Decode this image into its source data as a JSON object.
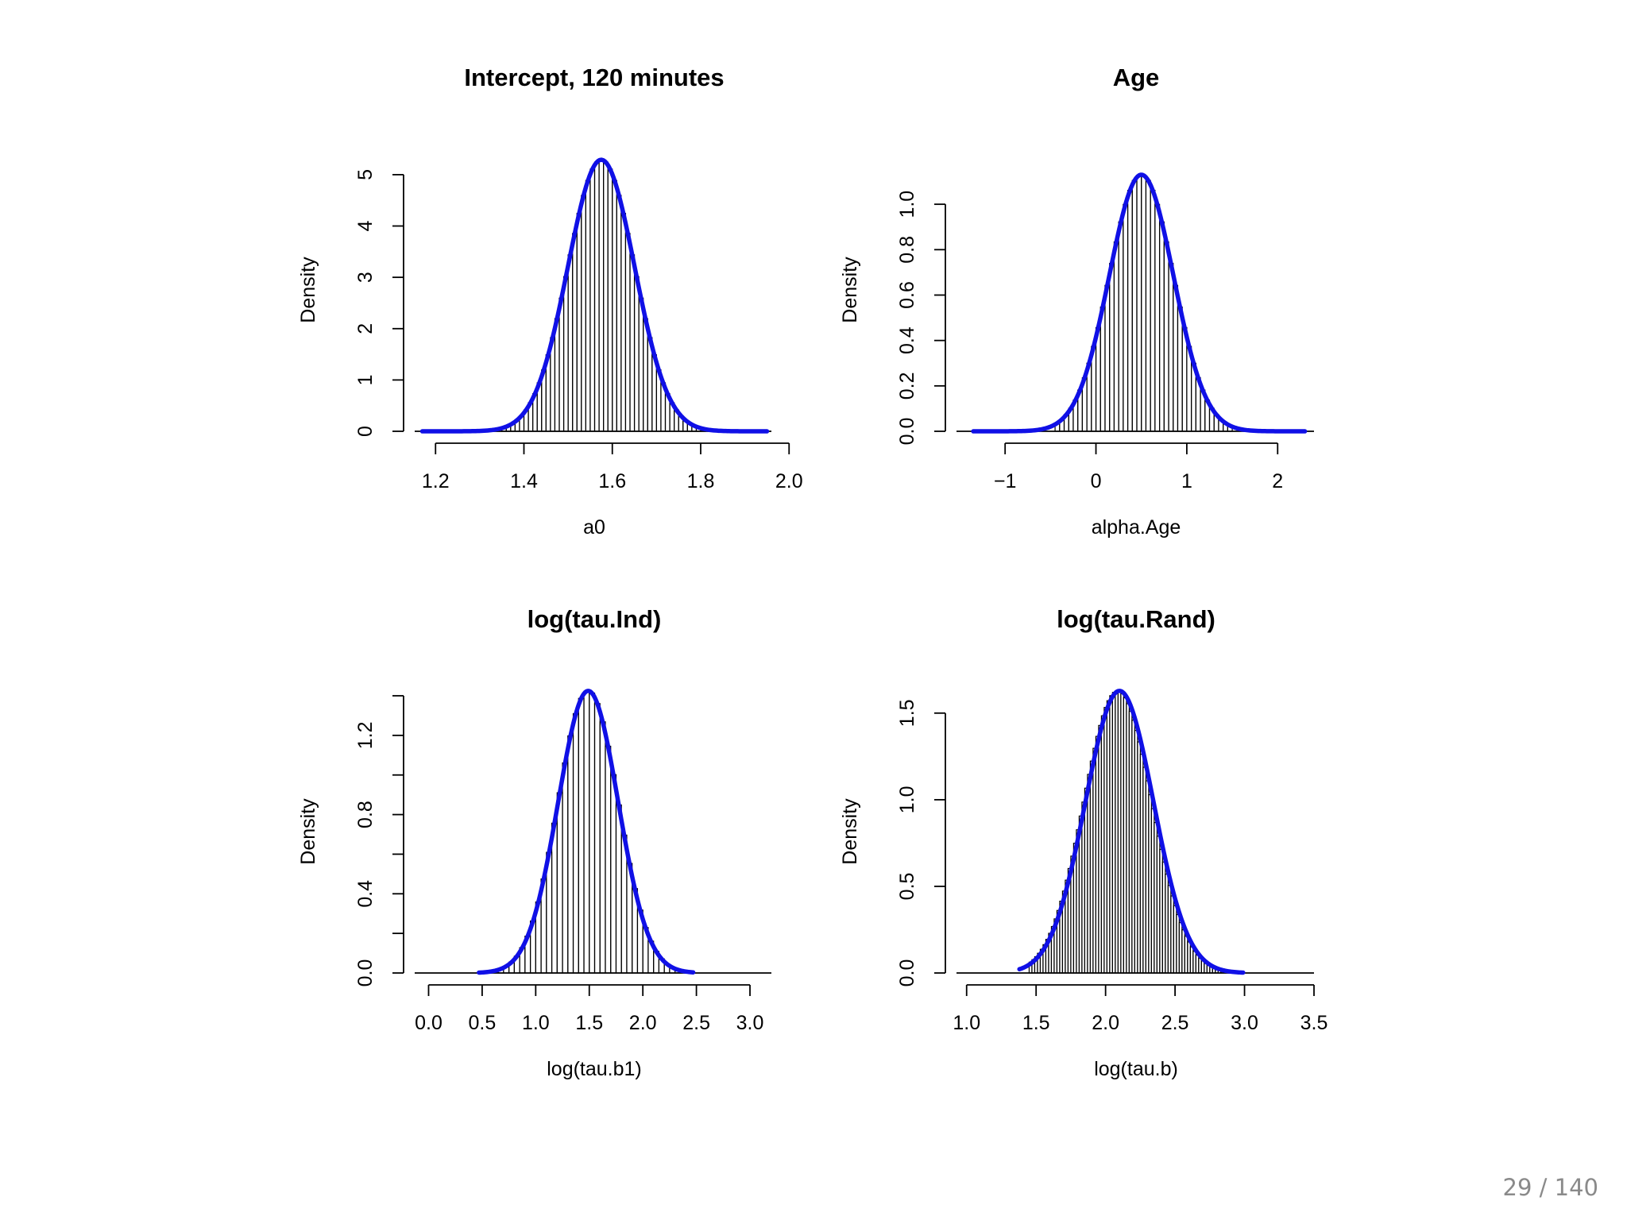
{
  "page": {
    "number_label": "29 / 140"
  },
  "style": {
    "curve_color": "#1010e6",
    "bar_color": "#000000"
  },
  "chart_data": [
    {
      "type": "bar",
      "title": "Intercept, 120 minutes",
      "xlabel": "a0",
      "ylabel": "Density",
      "xlim": [
        1.16,
        1.96
      ],
      "ylim": [
        0,
        5.2
      ],
      "xticks": [
        1.2,
        1.4,
        1.6,
        1.8,
        2.0
      ],
      "xtick_labels": [
        "1.2",
        "1.4",
        "1.6",
        "1.8",
        "2.0"
      ],
      "yticks": [
        0,
        1,
        2,
        3,
        4,
        5
      ],
      "ytick_labels": [
        "0",
        "1",
        "2",
        "3",
        "4",
        "5"
      ],
      "histogram": {
        "bin_width": 0.01,
        "range": [
          1.33,
          1.82
        ]
      },
      "density": {
        "distribution": "normal",
        "mean": 1.575,
        "sd": 0.0754
      },
      "curve_range": [
        1.17,
        1.95
      ],
      "grid": false
    },
    {
      "type": "bar",
      "title": "Age",
      "xlabel": "alpha.Age",
      "ylabel": "Density",
      "xlim": [
        -1.5,
        2.4
      ],
      "ylim": [
        0,
        1.13
      ],
      "xticks": [
        -1,
        0,
        1,
        2
      ],
      "xtick_labels": [
        "−1",
        "0",
        "1",
        "2"
      ],
      "yticks": [
        0,
        0.2,
        0.4,
        0.6,
        0.8,
        1.0
      ],
      "ytick_labels": [
        "0.0",
        "0.2",
        "0.4",
        "0.6",
        "0.8",
        "1.0"
      ],
      "histogram": {
        "bin_width": 0.05,
        "range": [
          -0.45,
          1.5
        ]
      },
      "density": {
        "distribution": "normal",
        "mean": 0.5,
        "sd": 0.353
      },
      "curve_range": [
        -1.35,
        2.3
      ],
      "grid": false
    },
    {
      "type": "bar",
      "title": "log(tau.Ind)",
      "xlabel": "log(tau.b1)",
      "ylabel": "Density",
      "xlim": [
        -0.1,
        3.2
      ],
      "ylim": [
        0,
        1.4
      ],
      "xticks": [
        0.0,
        0.5,
        1.0,
        1.5,
        2.0,
        2.5,
        3.0
      ],
      "xtick_labels": [
        "0.0",
        "0.5",
        "1.0",
        "1.5",
        "2.0",
        "2.5",
        "3.0"
      ],
      "yticks": [
        0.0,
        0.4,
        0.8,
        1.2
      ],
      "ytick_labels": [
        "0.0",
        "0.4",
        "0.8",
        "1.2"
      ],
      "minor_yticks": [
        0.2,
        0.6,
        1.0,
        1.4
      ],
      "histogram": {
        "bin_width": 0.05,
        "range": [
          0.65,
          2.35
        ]
      },
      "density": {
        "distribution": "normal",
        "mean": 1.49,
        "sd": 0.28
      },
      "curve_range": [
        0.47,
        2.47
      ],
      "grid": false
    },
    {
      "type": "bar",
      "title": "log(tau.Rand)",
      "xlabel": "log(tau.b)",
      "ylabel": "Density",
      "xlim": [
        0.95,
        3.5
      ],
      "ylim": [
        0,
        1.6
      ],
      "xticks": [
        1.0,
        1.5,
        2.0,
        2.5,
        3.0,
        3.5
      ],
      "xtick_labels": [
        "1.0",
        "1.5",
        "2.0",
        "2.5",
        "3.0",
        "3.5"
      ],
      "yticks": [
        0.0,
        0.5,
        1.0,
        1.5
      ],
      "ytick_labels": [
        "0.0",
        "0.5",
        "1.0",
        "1.5"
      ],
      "histogram": {
        "bin_width": 0.02,
        "range": [
          1.45,
          2.85
        ],
        "skew": 0.12
      },
      "density": {
        "distribution": "normal",
        "mean": 2.1,
        "sd": 0.245
      },
      "curve_range": [
        1.38,
        2.99
      ],
      "grid": false
    }
  ]
}
